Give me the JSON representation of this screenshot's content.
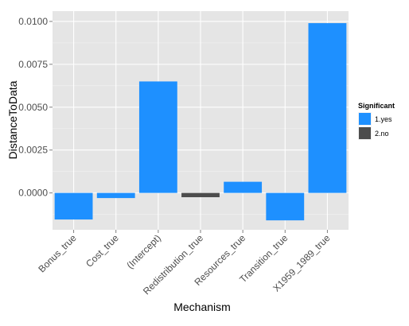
{
  "chart_data": {
    "type": "bar",
    "xlabel": "Mechanism",
    "ylabel": "DistanceToData",
    "categories": [
      "Bonus_true",
      "Cost_true",
      "(Intercept)",
      "Redistribution_true",
      "Resources_true",
      "Transition_true",
      "X1959_1989_true"
    ],
    "values": [
      -0.00155,
      -0.0003,
      0.0065,
      -0.00025,
      0.00065,
      -0.0016,
      0.0099
    ],
    "significant": [
      "1.yes",
      "1.yes",
      "1.yes",
      "2.no",
      "1.yes",
      "1.yes",
      "1.yes"
    ],
    "ylim": [
      -0.00215,
      0.0106
    ],
    "yticks": [
      0.0,
      0.0025,
      0.005,
      0.0075,
      0.01
    ],
    "ytick_labels": [
      "0.0000",
      "0.0025",
      "0.0050",
      "0.0075",
      "0.0100"
    ],
    "grid": true,
    "legend": {
      "title": "Significant",
      "placement": "right",
      "entries": [
        {
          "label": "1.yes",
          "color": "#1e90ff"
        },
        {
          "label": "2.no",
          "color": "#4d4d4d"
        }
      ]
    },
    "colors": {
      "panel": "#e5e5e5",
      "grid": "#ffffff"
    }
  }
}
